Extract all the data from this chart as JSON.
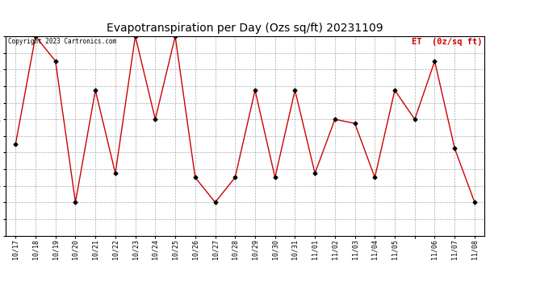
{
  "title": "Evapotranspiration per Day (Ozs sq/ft) 20231109",
  "copyright": "Copyright 2023 Cartronics.com",
  "legend_label": "ET  (0z/sq ft)",
  "x_display_labels": [
    "10/17",
    "10/18",
    "10/19",
    "10/20",
    "10/21",
    "10/22",
    "10/23",
    "10/24",
    "10/25",
    "10/26",
    "10/27",
    "10/28",
    "10/29",
    "10/30",
    "10/31",
    "11/01",
    "11/02",
    "11/03",
    "11/04",
    "11/05",
    "",
    "11/06",
    "11/07",
    "11/08"
  ],
  "y_values": [
    2.56,
    5.585,
    4.887,
    0.931,
    4.072,
    1.745,
    5.585,
    3.258,
    5.585,
    1.628,
    0.931,
    1.628,
    4.072,
    1.628,
    4.072,
    1.745,
    3.258,
    3.141,
    1.628,
    4.072,
    3.258,
    4.887,
    2.443,
    0.931
  ],
  "y_ticks": [
    0.0,
    0.465,
    0.931,
    1.396,
    1.862,
    2.327,
    2.792,
    3.258,
    3.723,
    4.189,
    4.654,
    5.12,
    5.585
  ],
  "ylim": [
    0.0,
    5.585
  ],
  "line_color": "#cc0000",
  "marker_color": "#000000",
  "marker_size": 2.5,
  "line_width": 1.0,
  "background_color": "#ffffff",
  "grid_color": "#aaaaaa",
  "title_fontsize": 10,
  "tick_fontsize": 6,
  "legend_color": "#cc0000",
  "legend_fontsize": 7.5,
  "copyright_color": "#000000",
  "copyright_fontsize": 5.5
}
